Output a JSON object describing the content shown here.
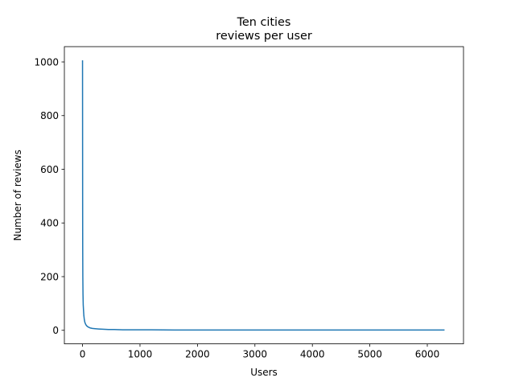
{
  "chart_data": {
    "type": "line",
    "title": "Ten cities",
    "subtitle": "reviews per user",
    "xlabel": "Users",
    "ylabel": "Number of reviews",
    "xlim": [
      -316,
      6630
    ],
    "ylim": [
      -50.5,
      1057
    ],
    "x_ticks": [
      0,
      1000,
      2000,
      3000,
      4000,
      5000,
      6000
    ],
    "y_ticks": [
      0,
      200,
      400,
      600,
      800,
      1000
    ],
    "grid": false,
    "line_color": "#1f77b4",
    "series": [
      {
        "x": [
          0,
          1,
          2,
          3,
          5,
          8,
          12,
          17,
          23,
          30,
          40,
          55,
          75,
          100,
          130,
          170,
          220,
          280,
          350,
          450,
          550,
          700,
          900,
          1200,
          1600,
          2100,
          2800,
          3600,
          4500,
          5500,
          6300
        ],
        "y": [
          1006,
          700,
          450,
          310,
          200,
          135,
          95,
          75,
          55,
          42,
          30,
          22,
          16,
          12,
          9,
          7,
          6,
          5,
          4,
          3,
          3,
          2,
          2,
          2,
          1,
          1,
          1,
          1,
          1,
          1,
          1
        ]
      }
    ]
  }
}
